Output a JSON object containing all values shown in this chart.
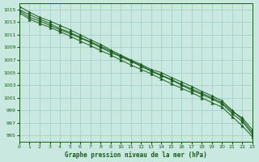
{
  "title": "Graphe pression niveau de la mer (hPa)",
  "background_color": "#c8e8e0",
  "grid_color": "#a0ccc4",
  "line_color": "#1a5c1a",
  "xlim": [
    0,
    23
  ],
  "ylim": [
    994,
    1016
  ],
  "yticks": [
    995,
    997,
    999,
    1001,
    1003,
    1005,
    1007,
    1009,
    1011,
    1013,
    1015
  ],
  "xticks": [
    0,
    1,
    2,
    3,
    4,
    5,
    6,
    7,
    8,
    9,
    10,
    11,
    12,
    13,
    14,
    15,
    16,
    17,
    18,
    19,
    20,
    21,
    22,
    23
  ],
  "series": [
    [
      1015.5,
      1014.6,
      1013.8,
      1013.2,
      1012.5,
      1011.8,
      1011.0,
      1010.2,
      1009.5,
      1008.6,
      1007.8,
      1007.0,
      1006.3,
      1005.5,
      1005.0,
      1004.2,
      1003.5,
      1002.8,
      1002.0,
      1001.3,
      1000.5,
      999.0,
      997.5,
      995.5
    ],
    [
      1014.8,
      1013.8,
      1013.2,
      1012.5,
      1011.8,
      1011.2,
      1010.5,
      1009.8,
      1009.0,
      1008.2,
      1007.5,
      1006.8,
      1006.0,
      1005.2,
      1004.5,
      1003.8,
      1003.0,
      1002.2,
      1001.5,
      1000.8,
      1000.0,
      998.5,
      997.2,
      995.2
    ],
    [
      1015.0,
      1014.2,
      1013.5,
      1012.8,
      1012.0,
      1011.4,
      1010.6,
      1009.9,
      1009.2,
      1008.4,
      1007.6,
      1006.9,
      1006.1,
      1005.3,
      1004.6,
      1003.9,
      1003.1,
      1002.4,
      1001.7,
      1001.0,
      1000.2,
      998.8,
      997.8,
      995.9
    ],
    [
      1014.5,
      1013.5,
      1012.8,
      1012.2,
      1011.5,
      1010.8,
      1010.0,
      1009.3,
      1008.5,
      1007.8,
      1007.0,
      1006.2,
      1005.5,
      1004.8,
      1004.0,
      1003.2,
      1002.5,
      1001.8,
      1001.0,
      1000.2,
      999.5,
      998.0,
      996.5,
      994.8
    ]
  ]
}
